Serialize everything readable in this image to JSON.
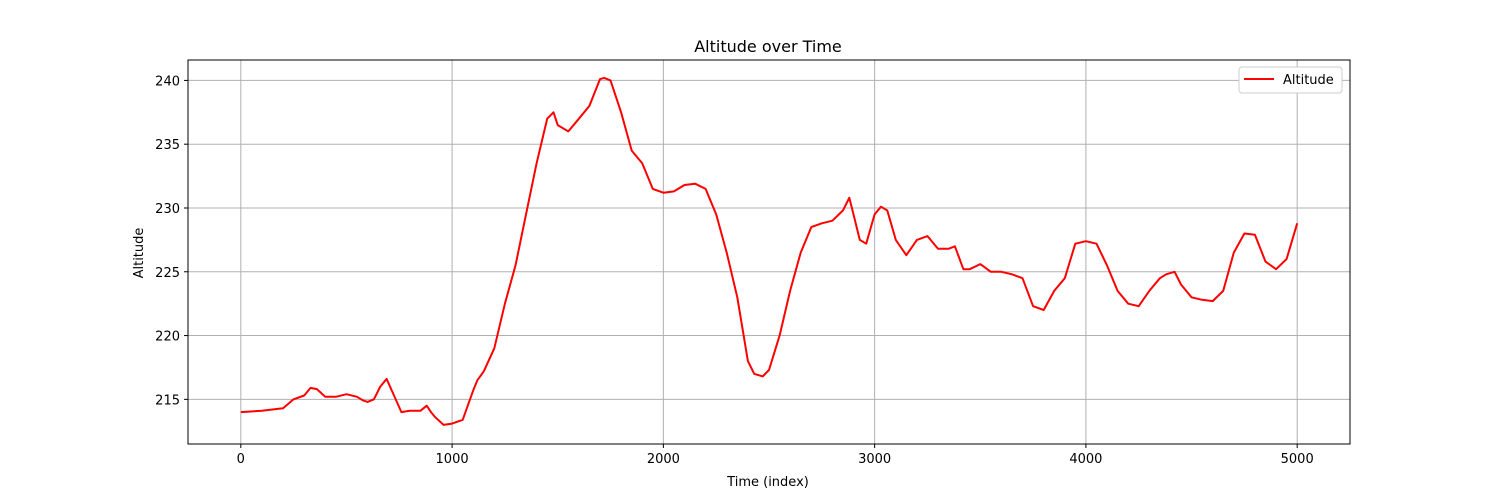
{
  "chart_data": {
    "type": "line",
    "title": "Altitude over Time",
    "xlabel": "Time (index)",
    "ylabel": "Altitude",
    "xlim": [
      -250,
      5250
    ],
    "ylim": [
      211.5,
      241.6
    ],
    "xticks": [
      0,
      1000,
      2000,
      3000,
      4000,
      5000
    ],
    "yticks": [
      215,
      220,
      225,
      230,
      235,
      240
    ],
    "grid": true,
    "legend_position": "top-right",
    "series": [
      {
        "name": "Altitude",
        "color": "#ff0000",
        "x": [
          0,
          100,
          200,
          250,
          300,
          330,
          360,
          400,
          450,
          500,
          550,
          580,
          600,
          630,
          660,
          690,
          720,
          760,
          800,
          850,
          880,
          900,
          920,
          960,
          1000,
          1050,
          1100,
          1120,
          1150,
          1200,
          1250,
          1300,
          1350,
          1400,
          1450,
          1480,
          1500,
          1550,
          1600,
          1650,
          1700,
          1720,
          1750,
          1800,
          1850,
          1900,
          1950,
          2000,
          2050,
          2100,
          2150,
          2200,
          2250,
          2300,
          2350,
          2400,
          2430,
          2470,
          2500,
          2550,
          2600,
          2650,
          2700,
          2750,
          2800,
          2850,
          2880,
          2900,
          2930,
          2960,
          3000,
          3030,
          3060,
          3100,
          3150,
          3200,
          3250,
          3300,
          3350,
          3380,
          3420,
          3450,
          3500,
          3550,
          3600,
          3650,
          3700,
          3750,
          3800,
          3850,
          3900,
          3950,
          4000,
          4050,
          4100,
          4150,
          4200,
          4250,
          4300,
          4350,
          4380,
          4420,
          4450,
          4500,
          4550,
          4600,
          4650,
          4700,
          4750,
          4800,
          4850,
          4900,
          4950,
          5000
        ],
        "y": [
          214.0,
          214.1,
          214.3,
          215.0,
          215.3,
          215.9,
          215.8,
          215.2,
          215.2,
          215.4,
          215.2,
          214.9,
          214.8,
          215.0,
          216.0,
          216.6,
          215.5,
          214.0,
          214.1,
          214.1,
          214.5,
          214.0,
          213.6,
          213.0,
          213.1,
          213.4,
          215.7,
          216.5,
          217.2,
          219.0,
          222.5,
          225.5,
          229.5,
          233.5,
          237.0,
          237.5,
          236.5,
          236.0,
          237.0,
          238.0,
          240.1,
          240.2,
          240.0,
          237.5,
          234.5,
          233.5,
          231.5,
          231.2,
          231.3,
          231.8,
          231.9,
          231.5,
          229.5,
          226.5,
          223.0,
          218.0,
          217.0,
          216.8,
          217.3,
          220.0,
          223.5,
          226.5,
          228.5,
          228.8,
          229.0,
          229.8,
          230.8,
          229.5,
          227.5,
          227.2,
          229.5,
          230.1,
          229.8,
          227.5,
          226.3,
          227.5,
          227.8,
          226.8,
          226.8,
          227.0,
          225.2,
          225.2,
          225.6,
          225.0,
          225.0,
          224.8,
          224.5,
          222.3,
          222.0,
          223.5,
          224.5,
          227.2,
          227.4,
          227.2,
          225.5,
          223.5,
          222.5,
          222.3,
          223.5,
          224.5,
          224.8,
          225.0,
          224.0,
          223.0,
          222.8,
          222.7,
          223.5,
          226.5,
          228.0,
          227.9,
          225.8,
          225.2,
          226.0,
          228.8
        ]
      }
    ]
  }
}
